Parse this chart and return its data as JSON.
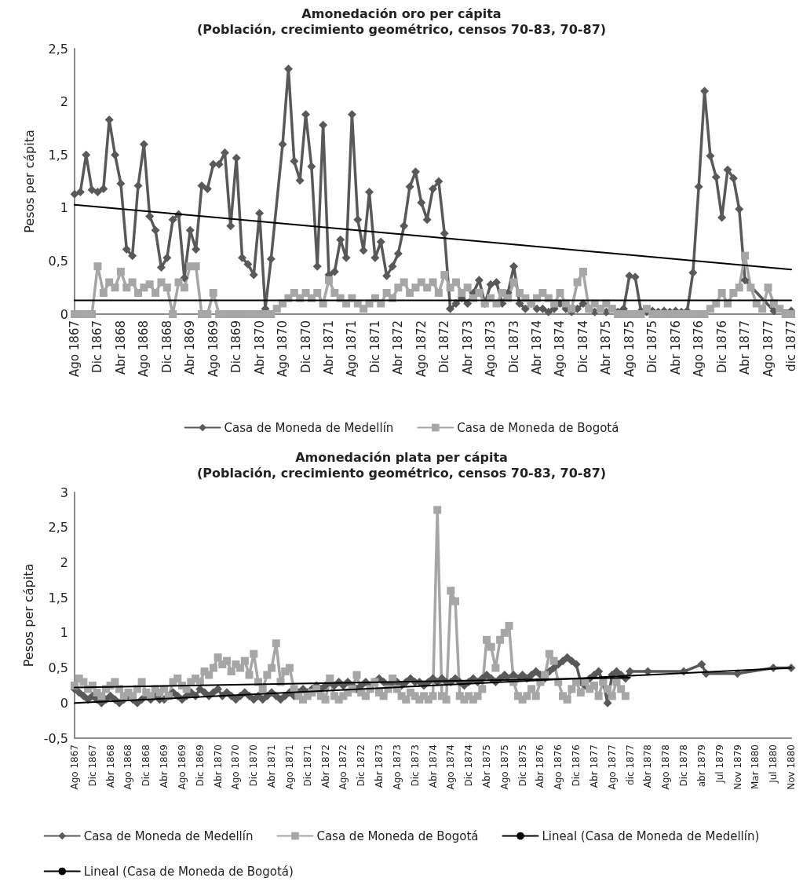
{
  "chart_data": [
    {
      "type": "line",
      "title": "Amonedación oro per cápita",
      "subtitle": "(Población, crecimiento geométrico, censos 70-83, 70-87)",
      "ylabel": "Pesos per cápita",
      "categories": [
        "Ago 1867",
        null,
        null,
        null,
        "Dic 1867",
        null,
        null,
        null,
        "Abr 1868",
        null,
        null,
        null,
        "Ago 1868",
        null,
        null,
        null,
        "Dic 1868",
        null,
        null,
        null,
        "Abr 1869",
        null,
        null,
        null,
        "Ago 1869",
        null,
        null,
        null,
        "Dic 1869",
        null,
        null,
        null,
        "Abr 1870",
        null,
        null,
        null,
        "Ago 1870",
        null,
        null,
        null,
        "Dic 1870",
        null,
        null,
        null,
        "Abr 1871",
        null,
        null,
        null,
        "Ago 1871",
        null,
        null,
        null,
        "Dic 1871",
        null,
        null,
        null,
        "Abr 1872",
        null,
        null,
        null,
        "Ago 1872",
        null,
        null,
        null,
        "Dic 1872",
        null,
        null,
        null,
        "Abr 1873",
        null,
        null,
        null,
        "Ago 1873",
        null,
        null,
        null,
        "Dic 1873",
        null,
        null,
        null,
        "Abr 1874",
        null,
        null,
        null,
        "Ago 1874",
        null,
        null,
        null,
        "Dic 1874",
        null,
        null,
        null,
        "Abr 1875",
        null,
        null,
        null,
        "Ago 1875",
        null,
        null,
        null,
        "Dic 1875",
        null,
        null,
        null,
        "Abr 1876",
        null,
        null,
        null,
        "Ago 1876",
        null,
        null,
        null,
        "Dic 1876",
        null,
        null,
        null,
        "Abr 1877",
        null,
        null,
        null,
        "Ago 1877",
        null,
        null,
        null,
        "dic 1877"
      ],
      "series": [
        {
          "name": "Casa de Moneda de Medellín",
          "color": "#595959",
          "marker": "diamond",
          "values": [
            1.13,
            1.15,
            1.5,
            1.17,
            1.15,
            1.18,
            1.83,
            1.5,
            1.23,
            0.61,
            0.55,
            1.21,
            1.6,
            0.92,
            0.79,
            0.44,
            0.53,
            0.89,
            0.94,
            0.34,
            0.79,
            0.61,
            1.21,
            1.18,
            1.41,
            1.41,
            1.52,
            0.83,
            1.47,
            0.53,
            0.47,
            0.37,
            0.95,
            0.05,
            0.52,
            null,
            1.6,
            2.31,
            1.44,
            1.26,
            1.88,
            1.39,
            0.45,
            1.78,
            0.37,
            0.4,
            0.7,
            0.53,
            1.88,
            0.89,
            0.6,
            1.15,
            0.53,
            0.68,
            0.36,
            0.45,
            0.57,
            0.83,
            1.2,
            1.34,
            1.05,
            0.89,
            1.18,
            1.25,
            0.76,
            0.05,
            0.1,
            0.15,
            0.1,
            0.2,
            0.32,
            0.1,
            0.28,
            0.3,
            0.1,
            0.2,
            0.45,
            0.1,
            0.05,
            0.1,
            0.05,
            0.05,
            0.02,
            0.05,
            0.1,
            0.05,
            0.02,
            0.05,
            0.1,
            0.05,
            0.02,
            0.05,
            0.02,
            0.05,
            0.02,
            0.05,
            0.36,
            0.35,
            0.03,
            0.02,
            0.03,
            0.02,
            0.03,
            0.02,
            0.03,
            0.02,
            0.03,
            0.39,
            1.2,
            2.1,
            1.49,
            1.29,
            0.91,
            1.36,
            1.28,
            0.99,
            0.32,
            null,
            null,
            null,
            null,
            0.03,
            null,
            null,
            0.03
          ]
        },
        {
          "name": "Casa de Moneda de Bogotá",
          "color": "#a6a6a6",
          "marker": "square",
          "values": [
            0,
            0,
            0,
            0,
            0.45,
            0.2,
            0.3,
            0.25,
            0.4,
            0.25,
            0.3,
            0.2,
            0.25,
            0.28,
            0.2,
            0.3,
            0.25,
            0,
            0.3,
            0.25,
            0.45,
            0.45,
            0,
            0,
            0.2,
            0,
            0,
            0,
            0,
            0,
            0,
            0,
            0,
            0,
            0,
            0.05,
            0.1,
            0.15,
            0.2,
            0.15,
            0.2,
            0.15,
            0.2,
            0.1,
            0.32,
            0.2,
            0.15,
            0.1,
            0.15,
            0.1,
            0.05,
            0.1,
            0.15,
            0.1,
            0.2,
            0.15,
            0.25,
            0.3,
            0.2,
            0.25,
            0.3,
            0.25,
            0.3,
            0.2,
            0.37,
            0.25,
            0.3,
            0.2,
            0.25,
            0.15,
            0.2,
            0.1,
            0.15,
            0.1,
            0.2,
            0.15,
            0.3,
            0.2,
            0.15,
            0.1,
            0.15,
            0.2,
            0.15,
            0.1,
            0.2,
            0.1,
            0.05,
            0.3,
            0.4,
            0.05,
            0.1,
            0.05,
            0.1,
            0.05,
            0,
            0,
            0,
            0,
            0,
            0.05,
            0,
            0,
            0,
            0,
            0,
            0,
            0,
            0,
            0,
            0,
            0.05,
            0.1,
            0.2,
            0.1,
            0.2,
            0.25,
            0.55,
            0.25,
            0.1,
            0.05,
            0.25,
            0.1,
            0.05,
            0,
            0
          ]
        },
        {
          "type": "line",
          "color": "#000000",
          "marker": "none",
          "x": [
            "Ago 1867",
            "dic 1877"
          ],
          "values": [
            1.03,
            0.42
          ]
        },
        {
          "type": "line",
          "color": "#000000",
          "marker": "none",
          "x": [
            "Ago 1867",
            "dic 1877"
          ],
          "values": [
            0.13,
            0.13
          ]
        }
      ],
      "ylim": [
        0,
        2.5
      ],
      "yticks": [
        0,
        {
          "value": 0.5,
          "label": "0,5"
        },
        1,
        {
          "value": 1.5,
          "label": "1,5"
        },
        2,
        {
          "value": 2.5,
          "label": "2,5"
        }
      ],
      "grid": false,
      "legend": "bottom",
      "line_style": "solid"
    },
    {
      "type": "line",
      "title": "Amonedación plata per cápita",
      "subtitle": "(Población, crecimiento geométrico, censos 70-83, 70-87)",
      "ylabel": "Pesos per cápita",
      "categories": [
        "Ago 1867",
        null,
        null,
        null,
        "Dic 1867",
        null,
        null,
        null,
        "Abr 1868",
        null,
        null,
        null,
        "Ago 1868",
        null,
        null,
        null,
        "Dic 1868",
        null,
        null,
        null,
        "Abr 1869",
        null,
        null,
        null,
        "Ago 1869",
        null,
        null,
        null,
        "Dic 1869",
        null,
        null,
        null,
        "Abr 1870",
        null,
        null,
        null,
        "Ago 1870",
        null,
        null,
        null,
        "Dic 1870",
        null,
        null,
        null,
        "Abr 1871",
        null,
        null,
        null,
        "Ago 1871",
        null,
        null,
        null,
        "Dic 1871",
        null,
        null,
        null,
        "Abr 1872",
        null,
        null,
        null,
        "Ago 1872",
        null,
        null,
        null,
        "Dic 1872",
        null,
        null,
        null,
        "Abr 1873",
        null,
        null,
        null,
        "Ago 1873",
        null,
        null,
        null,
        "Dic 1873",
        null,
        null,
        null,
        "Abr 1874",
        null,
        null,
        null,
        "Ago 1874",
        null,
        null,
        null,
        "Dic 1874",
        null,
        null,
        null,
        "Abr 1875",
        null,
        null,
        null,
        "Ago 1875",
        null,
        null,
        null,
        "Dic 1875",
        null,
        null,
        null,
        "Abr 1876",
        null,
        null,
        null,
        "Ago 1876",
        null,
        null,
        null,
        "Dic 1876",
        null,
        null,
        null,
        "Abr 1877",
        null,
        null,
        null,
        "Ago 1877",
        null,
        null,
        null,
        "dic 1877",
        null,
        null,
        null,
        "Abr 1878",
        null,
        null,
        null,
        "Ago 1878",
        null,
        null,
        null,
        "Dic 1878",
        null,
        null,
        null,
        "abr 1879",
        null,
        null,
        null,
        "Jul 1879",
        null,
        null,
        null,
        "Nov 1879",
        null,
        null,
        null,
        "Mar 1880",
        null,
        null,
        null,
        "Jul 1880",
        null,
        null,
        null,
        "Nov 1880"
      ],
      "series": [
        {
          "name": "Casa de Moneda de Medellín",
          "color": "#595959",
          "marker": "diamond",
          "values": [
            0.2,
            0.15,
            0.1,
            0.05,
            0.1,
            0.05,
            0,
            0.05,
            0.1,
            0.05,
            0,
            0.05,
            0.1,
            0.05,
            0,
            0.05,
            0.1,
            0.05,
            0.1,
            0.05,
            0.05,
            0.1,
            0.15,
            0.1,
            0.05,
            0.1,
            0.15,
            0.1,
            0.2,
            0.15,
            0.1,
            0.15,
            0.2,
            0.1,
            0.15,
            0.1,
            0.05,
            0.1,
            0.15,
            0.1,
            0.05,
            0.1,
            0.05,
            0.1,
            0.15,
            0.1,
            0.05,
            0.1,
            0.15,
            0.1,
            0.15,
            0.2,
            0.15,
            0.2,
            0.25,
            0.2,
            0.25,
            0.3,
            0.25,
            0.3,
            0.25,
            0.3,
            0.25,
            0.2,
            0.25,
            0.3,
            0.25,
            0.3,
            0.35,
            0.3,
            0.25,
            0.3,
            0.3,
            0.25,
            0.3,
            0.35,
            0.3,
            0.3,
            0.25,
            0.3,
            0.35,
            0.3,
            0.35,
            0.3,
            0.3,
            0.35,
            0.3,
            0.25,
            0.3,
            0.35,
            0.3,
            0.35,
            0.4,
            0.35,
            0.3,
            0.35,
            0.4,
            0.35,
            0.4,
            0.35,
            0.4,
            0.35,
            0.4,
            0.45,
            0.4,
            0.35,
            0.45,
            0.5,
            0.55,
            0.6,
            0.65,
            0.6,
            0.55,
            0.3,
            0.25,
            0.35,
            0.4,
            0.45,
            0.3,
            0,
            0.4,
            0.45,
            0.4,
            0.35,
            0.45,
            null,
            null,
            null,
            0.45,
            null,
            null,
            null,
            null,
            null,
            null,
            null,
            0.45,
            null,
            null,
            null,
            0.55,
            0.42,
            null,
            null,
            null,
            null,
            null,
            null,
            0.42,
            null,
            null,
            null,
            null,
            null,
            null,
            null,
            0.5,
            null,
            null,
            null,
            0.5
          ]
        },
        {
          "name": "Casa de Moneda de Bogotá",
          "color": "#a6a6a6",
          "marker": "square",
          "values": [
            0.25,
            0.35,
            0.3,
            0.2,
            0.25,
            0.15,
            0.1,
            0.2,
            0.25,
            0.3,
            0.2,
            0.1,
            0.15,
            0.1,
            0.2,
            0.3,
            0.15,
            0.1,
            0.2,
            0.15,
            0.2,
            0.1,
            0.3,
            0.35,
            0.25,
            0.2,
            0.3,
            0.35,
            0.3,
            0.45,
            0.4,
            0.5,
            0.65,
            0.55,
            0.6,
            0.45,
            0.55,
            0.5,
            0.6,
            0.4,
            0.7,
            0.3,
            0.2,
            0.4,
            0.5,
            0.85,
            0.3,
            0.45,
            0.5,
            0.2,
            0.1,
            0.05,
            0.1,
            0.15,
            0.2,
            0.1,
            0.05,
            0.35,
            0.1,
            0.05,
            0.1,
            0.15,
            0.2,
            0.4,
            0.15,
            0.1,
            0.2,
            0.3,
            0.15,
            0.1,
            0.2,
            0.35,
            0.2,
            0.1,
            0.05,
            0.15,
            0.1,
            0.05,
            0.1,
            0.05,
            0.1,
            2.75,
            0.1,
            0.05,
            1.6,
            1.45,
            0.1,
            0.05,
            0.1,
            0.05,
            0.1,
            0.2,
            0.9,
            0.8,
            0.5,
            0.9,
            1,
            1.1,
            0.3,
            0.1,
            0.05,
            0.1,
            0.2,
            0.1,
            0.3,
            0.4,
            0.7,
            0.6,
            0.3,
            0.1,
            0.05,
            0.2,
            0.3,
            0.15,
            0.3,
            0.2,
            0.25,
            0.1,
            0.3,
            0.2,
            0.1,
            0.3,
            0.2,
            0.1,
            null,
            null,
            null,
            null,
            null,
            null,
            null,
            null,
            null,
            null,
            null,
            null,
            null,
            null,
            null,
            null,
            null,
            null,
            null,
            null,
            null,
            null,
            null,
            null,
            null,
            null,
            null,
            null,
            null,
            null,
            null,
            null,
            null,
            null,
            null,
            null,
            null
          ]
        },
        {
          "name": "Lineal (Casa de Moneda de Medellín)",
          "type": "line",
          "color": "#000000",
          "marker": "none",
          "x": [
            "Ago 1867",
            "Nov 1880"
          ],
          "values": [
            0,
            0.5
          ]
        },
        {
          "name": "Lineal (Casa de Moneda de Bogotá)",
          "type": "line",
          "color": "#000000",
          "marker": "none",
          "x": [
            "Ago 1867",
            "dic 1877"
          ],
          "values": [
            0.22,
            0.36
          ]
        }
      ],
      "ylim": [
        -0.5,
        3
      ],
      "yticks": [
        {
          "value": -0.5,
          "label": "-0,5"
        },
        0,
        {
          "value": 0.5,
          "label": "0,5"
        },
        1,
        {
          "value": 1.5,
          "label": "1,5"
        },
        2,
        {
          "value": 2.5,
          "label": "2,5"
        },
        3
      ],
      "grid": false,
      "legend": "bottom",
      "line_style": "solid"
    }
  ]
}
